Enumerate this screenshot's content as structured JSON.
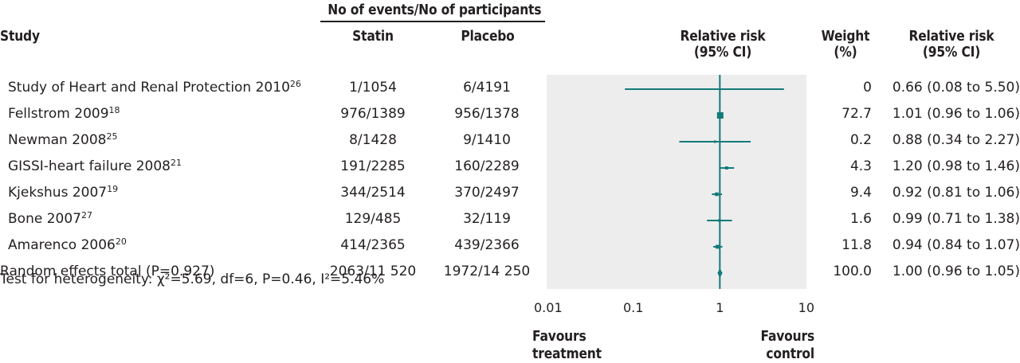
{
  "header": {
    "events_group": "No of events/No of participants",
    "study": "Study",
    "statin": "Statin",
    "placebo": "Placebo",
    "rr_plot_line1": "Relative risk",
    "rr_plot_line2": "(95% CI)",
    "weight_line1": "Weight",
    "weight_line2": "(%)",
    "rr_text_line1": "Relative risk",
    "rr_text_line2": "(95% CI)"
  },
  "chart_data": {
    "type": "forest",
    "x_scale": "log",
    "xlim": [
      0.01,
      10
    ],
    "x_ticks": [
      "0.01",
      "0.1",
      "1",
      "10"
    ],
    "reference_line": 1,
    "colors": {
      "marker": "#137a7a",
      "plot_bg": "#ededed"
    },
    "studies": [
      {
        "name": "Study of Heart and Renal Protection 2010",
        "ref": "26",
        "statin": "1/1054",
        "placebo": "6/4191",
        "weight": "0",
        "rr_text": "0.66 (0.08 to 5.50)",
        "rr": 0.66,
        "lo": 0.08,
        "hi": 5.5
      },
      {
        "name": "Fellstrom 2009",
        "ref": "18",
        "statin": "976/1389",
        "placebo": "956/1378",
        "weight": "72.7",
        "rr_text": "1.01 (0.96 to 1.06)",
        "rr": 1.01,
        "lo": 0.96,
        "hi": 1.06
      },
      {
        "name": "Newman 2008",
        "ref": "25",
        "statin": "8/1428",
        "placebo": "9/1410",
        "weight": "0.2",
        "rr_text": "0.88 (0.34 to 2.27)",
        "rr": 0.88,
        "lo": 0.34,
        "hi": 2.27
      },
      {
        "name": "GISSI-heart failure 2008",
        "ref": "21",
        "statin": "191/2285",
        "placebo": "160/2289",
        "weight": "4.3",
        "rr_text": "1.20 (0.98 to 1.46)",
        "rr": 1.2,
        "lo": 0.98,
        "hi": 1.46
      },
      {
        "name": "Kjekshus 2007",
        "ref": "19",
        "statin": "344/2514",
        "placebo": "370/2497",
        "weight": "9.4",
        "rr_text": "0.92 (0.81 to 1.06)",
        "rr": 0.92,
        "lo": 0.81,
        "hi": 1.06
      },
      {
        "name": "Bone 2007",
        "ref": "27",
        "statin": "129/485",
        "placebo": "32/119",
        "weight": "1.6",
        "rr_text": "0.99 (0.71 to 1.38)",
        "rr": 0.99,
        "lo": 0.71,
        "hi": 1.38
      },
      {
        "name": "Amarenco 2006",
        "ref": "20",
        "statin": "414/2365",
        "placebo": "439/2366",
        "weight": "11.8",
        "rr_text": "0.94 (0.84 to 1.07)",
        "rr": 0.94,
        "lo": 0.84,
        "hi": 1.07
      }
    ],
    "total": {
      "name": "Random effects total (P=0.927)",
      "statin": "2063/11 520",
      "placebo": "1972/14 250",
      "weight": "100.0",
      "rr_text": "1.00 (0.96 to 1.05)",
      "rr": 1.0,
      "lo": 0.96,
      "hi": 1.05
    },
    "heterogeneity": "Test for heterogeneity: χ²=5.69, df=6, P=0.46, I²=5.46%",
    "favours_left": [
      "Favours",
      "treatment"
    ],
    "favours_right": [
      "Favours",
      "control"
    ]
  }
}
